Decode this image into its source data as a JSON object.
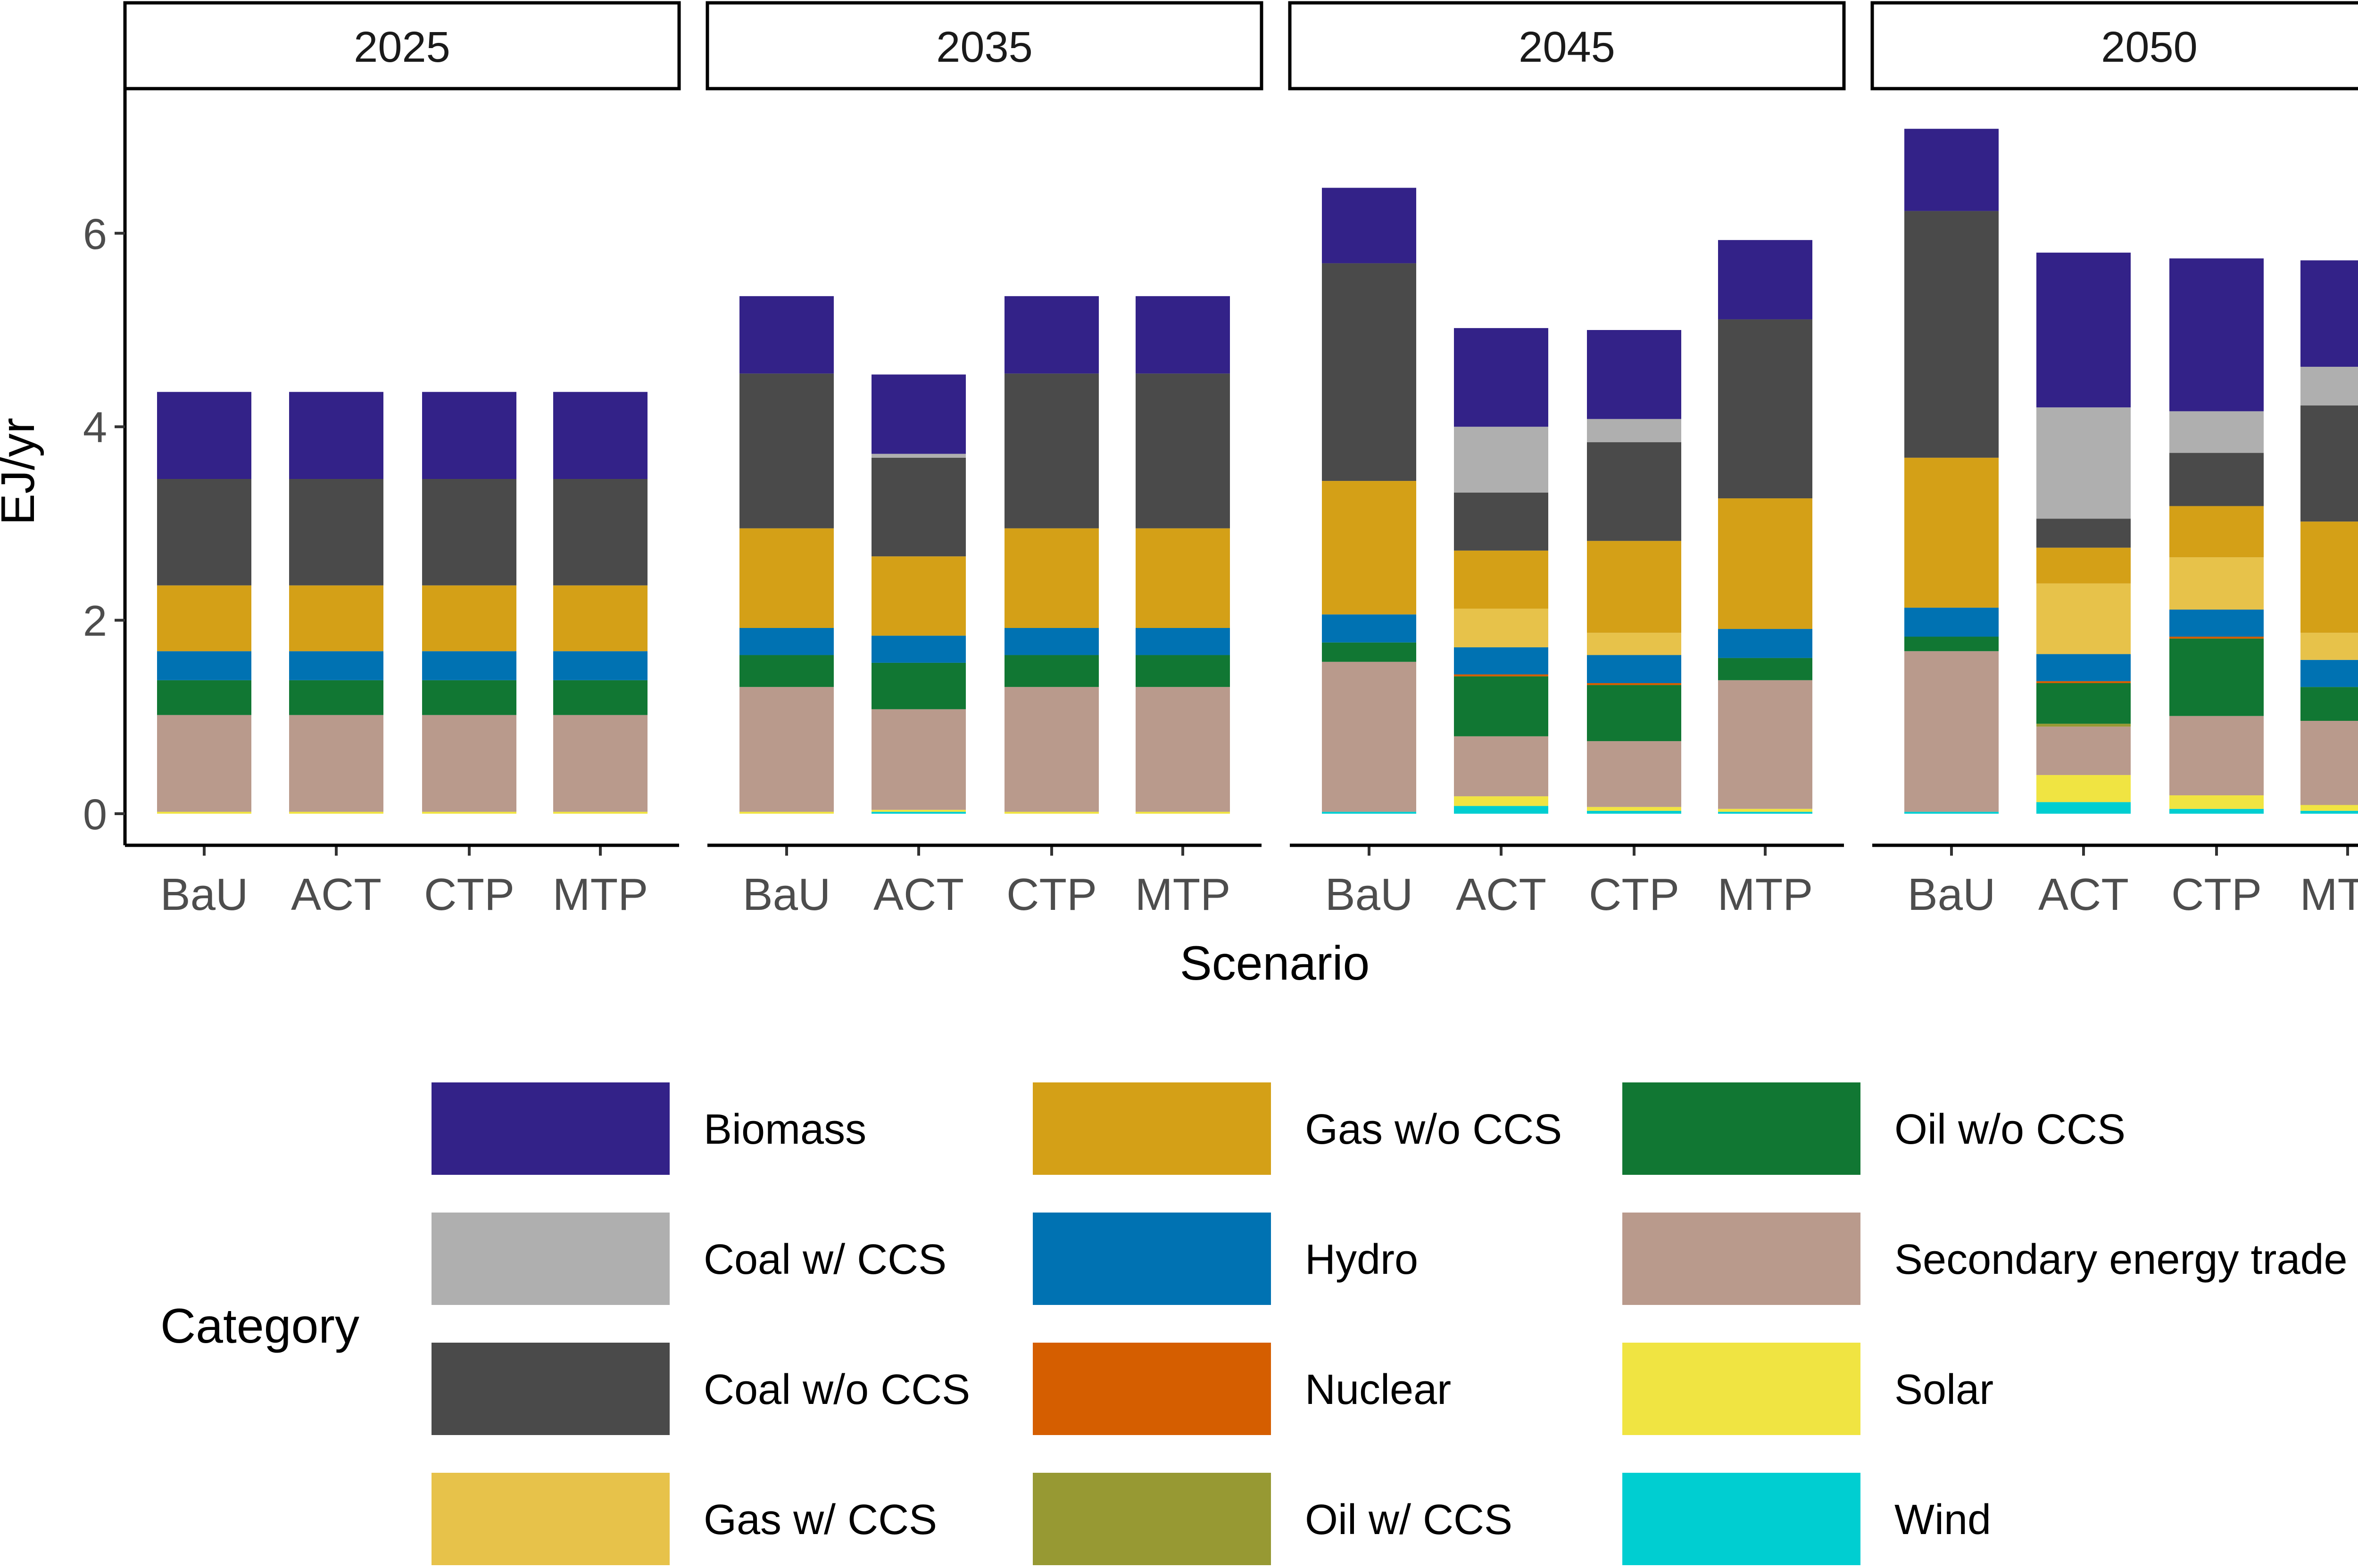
{
  "chart_data": {
    "type": "bar",
    "stacked": true,
    "facet_label": "",
    "xlabel": "Scenario",
    "ylabel": "EJ/yr",
    "ylim": [
      0,
      7.2
    ],
    "yticks": [
      0,
      2,
      4,
      6
    ],
    "grid": false,
    "legend": {
      "title": "Category",
      "placement": "bottom",
      "columns": 3
    },
    "categories": [
      "BaU",
      "ACT",
      "CTP",
      "MTP"
    ],
    "series": [
      {
        "name": "Wind",
        "color": "#00CED1"
      },
      {
        "name": "Solar",
        "color": "#F0E442"
      },
      {
        "name": "Secondary energy trade",
        "color": "#B99A8C"
      },
      {
        "name": "Oil w/ CCS",
        "color": "#979933"
      },
      {
        "name": "Oil w/o CCS",
        "color": "#117733"
      },
      {
        "name": "Nuclear",
        "color": "#D55E00"
      },
      {
        "name": "Hydro",
        "color": "#0072B2"
      },
      {
        "name": "Gas w/ CCS",
        "color": "#E7C24A"
      },
      {
        "name": "Gas w/o CCS",
        "color": "#D4A017"
      },
      {
        "name": "Coal w/o CCS",
        "color": "#4A4A4A"
      },
      {
        "name": "Coal w/ CCS",
        "color": "#AFAFAF"
      },
      {
        "name": "Biomass",
        "color": "#332288"
      }
    ],
    "legend_order": [
      "Biomass",
      "Coal w/ CCS",
      "Coal w/o CCS",
      "Gas w/ CCS",
      "Gas w/o CCS",
      "Hydro",
      "Nuclear",
      "Oil w/ CCS",
      "Oil w/o CCS",
      "Secondary energy trade",
      "Solar",
      "Wind"
    ],
    "panels": [
      {
        "title": "2025",
        "bars": {
          "BaU": [
            0.0,
            0.02,
            1.0,
            0.0,
            0.36,
            0.0,
            0.3,
            0.0,
            0.68,
            1.1,
            0.0,
            0.9
          ],
          "ACT": [
            0.0,
            0.02,
            1.0,
            0.0,
            0.36,
            0.0,
            0.3,
            0.0,
            0.68,
            1.1,
            0.0,
            0.9
          ],
          "CTP": [
            0.0,
            0.02,
            1.0,
            0.0,
            0.36,
            0.0,
            0.3,
            0.0,
            0.68,
            1.1,
            0.0,
            0.9
          ],
          "MTP": [
            0.0,
            0.02,
            1.0,
            0.0,
            0.36,
            0.0,
            0.3,
            0.0,
            0.68,
            1.1,
            0.0,
            0.9
          ]
        }
      },
      {
        "title": "2035",
        "bars": {
          "BaU": [
            0.0,
            0.02,
            1.29,
            0.0,
            0.33,
            0.0,
            0.28,
            0.0,
            1.03,
            1.6,
            0.0,
            0.8
          ],
          "ACT": [
            0.02,
            0.02,
            1.04,
            0.0,
            0.48,
            0.0,
            0.28,
            0.0,
            0.82,
            1.02,
            0.04,
            0.82
          ],
          "CTP": [
            0.0,
            0.02,
            1.29,
            0.0,
            0.33,
            0.0,
            0.28,
            0.0,
            1.03,
            1.6,
            0.0,
            0.8
          ],
          "MTP": [
            0.0,
            0.02,
            1.29,
            0.0,
            0.33,
            0.0,
            0.28,
            0.0,
            1.03,
            1.6,
            0.0,
            0.8
          ]
        }
      },
      {
        "title": "2045",
        "bars": {
          "BaU": [
            0.02,
            0.0,
            1.55,
            0.0,
            0.2,
            0.0,
            0.29,
            0.0,
            1.38,
            2.25,
            0.0,
            0.78
          ],
          "ACT": [
            0.08,
            0.1,
            0.62,
            0.0,
            0.62,
            0.02,
            0.28,
            0.4,
            0.6,
            0.6,
            0.68,
            1.02
          ],
          "CTP": [
            0.03,
            0.04,
            0.68,
            0.0,
            0.58,
            0.02,
            0.29,
            0.23,
            0.95,
            1.02,
            0.24,
            0.92
          ],
          "MTP": [
            0.02,
            0.03,
            1.33,
            0.0,
            0.23,
            0.0,
            0.3,
            0.0,
            1.35,
            1.85,
            0.0,
            0.82
          ]
        }
      },
      {
        "title": "2050",
        "bars": {
          "BaU": [
            0.02,
            0.0,
            1.66,
            0.0,
            0.15,
            0.0,
            0.3,
            0.0,
            1.55,
            2.55,
            0.0,
            0.85
          ],
          "ACT": [
            0.12,
            0.28,
            0.5,
            0.03,
            0.42,
            0.02,
            0.28,
            0.73,
            0.37,
            0.3,
            1.15,
            1.6
          ],
          "CTP": [
            0.05,
            0.14,
            0.82,
            0.0,
            0.8,
            0.02,
            0.28,
            0.54,
            0.53,
            0.55,
            0.43,
            1.58
          ],
          "MTP": [
            0.03,
            0.06,
            0.87,
            0.0,
            0.35,
            0.0,
            0.28,
            0.28,
            1.15,
            1.2,
            0.4,
            1.1
          ]
        }
      }
    ]
  }
}
